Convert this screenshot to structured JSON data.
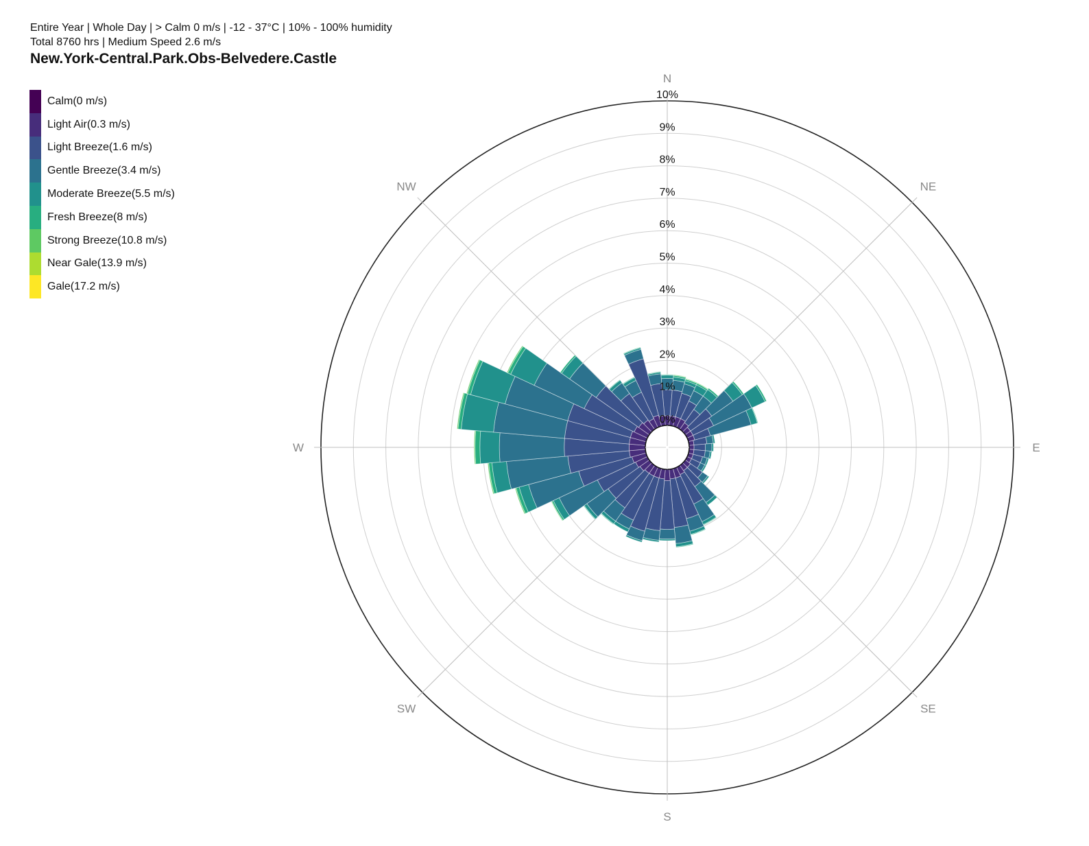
{
  "header": {
    "line1": "Entire Year | Whole Day | > Calm 0 m/s | -12 - 37°C | 10% - 100% humidity",
    "line2": "Total 8760 hrs | Medium Speed 2.6 m/s",
    "title": "New.York-Central.Park.Obs-Belvedere.Castle"
  },
  "legend": [
    {
      "label": "Calm(0 m/s)",
      "color": "#440154"
    },
    {
      "label": "Light Air(0.3 m/s)",
      "color": "#472d7b"
    },
    {
      "label": "Light Breeze(1.6 m/s)",
      "color": "#3b528b"
    },
    {
      "label": "Gentle Breeze(3.4 m/s)",
      "color": "#2c728e"
    },
    {
      "label": "Moderate Breeze(5.5 m/s)",
      "color": "#21918c"
    },
    {
      "label": "Fresh Breeze(8 m/s)",
      "color": "#28ae80"
    },
    {
      "label": "Strong Breeze(10.8 m/s)",
      "color": "#5ec962"
    },
    {
      "label": "Near Gale(13.9 m/s)",
      "color": "#addc30"
    },
    {
      "label": "Gale(17.2 m/s)",
      "color": "#fde725"
    }
  ],
  "chart_data": {
    "type": "wind_rose",
    "radial_unit": "%",
    "rlim": [
      0,
      10
    ],
    "ring_labels": [
      "0%",
      "1%",
      "2%",
      "3%",
      "4%",
      "5%",
      "6%",
      "7%",
      "8%",
      "9%",
      "10%"
    ],
    "directions": [
      "N",
      "NE",
      "E",
      "SE",
      "S",
      "SW",
      "W",
      "NW"
    ],
    "sector_count": 36,
    "sector_width_deg": 10,
    "bins": [
      "Calm",
      "Light Air",
      "Light Breeze",
      "Gentle Breeze",
      "Moderate Breeze",
      "Fresh Breeze",
      "Strong Breeze",
      "Near Gale",
      "Gale"
    ],
    "sectors": [
      {
        "dir_deg": 0,
        "values": [
          0,
          0.3,
          0.8,
          0.35,
          0.1,
          0.02,
          0,
          0,
          0
        ]
      },
      {
        "dir_deg": 10,
        "values": [
          0,
          0.3,
          0.8,
          0.3,
          0.1,
          0.05,
          0.02,
          0,
          0
        ]
      },
      {
        "dir_deg": 20,
        "values": [
          0,
          0.3,
          0.75,
          0.3,
          0.1,
          0.05,
          0.02,
          0,
          0
        ]
      },
      {
        "dir_deg": 30,
        "values": [
          0,
          0.3,
          0.6,
          0.35,
          0.2,
          0.05,
          0.02,
          0,
          0
        ]
      },
      {
        "dir_deg": 40,
        "values": [
          0,
          0.25,
          0.5,
          0.5,
          0.25,
          0.05,
          0,
          0,
          0
        ]
      },
      {
        "dir_deg": 50,
        "values": [
          0,
          0.2,
          0.8,
          0.8,
          0.35,
          0.05,
          0,
          0,
          0
        ]
      },
      {
        "dir_deg": 60,
        "values": [
          0,
          0.2,
          0.7,
          1.3,
          0.45,
          0.05,
          0,
          0,
          0
        ]
      },
      {
        "dir_deg": 70,
        "values": [
          0,
          0.2,
          0.5,
          1.3,
          0.2,
          0.02,
          0,
          0,
          0
        ]
      },
      {
        "dir_deg": 80,
        "values": [
          0,
          0.15,
          0.4,
          0.2,
          0.05,
          0,
          0,
          0,
          0
        ]
      },
      {
        "dir_deg": 90,
        "values": [
          0,
          0.15,
          0.35,
          0.2,
          0.05,
          0,
          0,
          0,
          0
        ]
      },
      {
        "dir_deg": 100,
        "values": [
          0,
          0.15,
          0.35,
          0.15,
          0.05,
          0,
          0,
          0,
          0
        ]
      },
      {
        "dir_deg": 110,
        "values": [
          0,
          0.15,
          0.3,
          0.15,
          0.05,
          0,
          0,
          0,
          0
        ]
      },
      {
        "dir_deg": 120,
        "values": [
          0,
          0.15,
          0.3,
          0.15,
          0.05,
          0,
          0,
          0,
          0
        ]
      },
      {
        "dir_deg": 130,
        "values": [
          0,
          0.2,
          0.45,
          0.2,
          0.05,
          0,
          0,
          0,
          0
        ]
      },
      {
        "dir_deg": 140,
        "values": [
          0,
          0.2,
          0.6,
          0.6,
          0.1,
          0,
          0,
          0,
          0
        ]
      },
      {
        "dir_deg": 150,
        "values": [
          0,
          0.25,
          1.0,
          0.6,
          0.1,
          0.02,
          0,
          0,
          0
        ]
      },
      {
        "dir_deg": 160,
        "values": [
          0,
          0.3,
          1.3,
          0.4,
          0.1,
          0.02,
          0,
          0,
          0
        ]
      },
      {
        "dir_deg": 170,
        "values": [
          0,
          0.3,
          1.5,
          0.5,
          0.1,
          0.02,
          0,
          0,
          0
        ]
      },
      {
        "dir_deg": 180,
        "values": [
          0,
          0.35,
          1.5,
          0.3,
          0.05,
          0,
          0,
          0,
          0
        ]
      },
      {
        "dir_deg": 190,
        "values": [
          0,
          0.3,
          1.6,
          0.3,
          0.05,
          0,
          0,
          0,
          0
        ]
      },
      {
        "dir_deg": 200,
        "values": [
          0,
          0.3,
          1.7,
          0.3,
          0.05,
          0,
          0,
          0,
          0
        ]
      },
      {
        "dir_deg": 210,
        "values": [
          0,
          0.3,
          1.5,
          0.3,
          0.1,
          0,
          0,
          0,
          0
        ]
      },
      {
        "dir_deg": 220,
        "values": [
          0,
          0.3,
          1.3,
          0.5,
          0.1,
          0.02,
          0,
          0,
          0
        ]
      },
      {
        "dir_deg": 230,
        "values": [
          0,
          0.35,
          1.2,
          0.8,
          0.1,
          0.02,
          0,
          0,
          0
        ]
      },
      {
        "dir_deg": 240,
        "values": [
          0,
          0.4,
          1.3,
          1.3,
          0.2,
          0.05,
          0.02,
          0,
          0
        ]
      },
      {
        "dir_deg": 250,
        "values": [
          0,
          0.45,
          1.7,
          1.6,
          0.3,
          0.1,
          0.03,
          0,
          0
        ]
      },
      {
        "dir_deg": 260,
        "values": [
          0,
          0.5,
          1.9,
          1.9,
          0.45,
          0.1,
          0.03,
          0,
          0
        ]
      },
      {
        "dir_deg": 270,
        "values": [
          0,
          0.5,
          2.0,
          2.0,
          0.6,
          0.15,
          0.03,
          0,
          0
        ]
      },
      {
        "dir_deg": 280,
        "values": [
          0,
          0.5,
          2.0,
          2.2,
          1.0,
          0.1,
          0.03,
          0,
          0
        ]
      },
      {
        "dir_deg": 290,
        "values": [
          0,
          0.5,
          2.0,
          2.0,
          1.1,
          0.1,
          0.03,
          0,
          0
        ]
      },
      {
        "dir_deg": 300,
        "values": [
          0,
          0.45,
          1.7,
          1.7,
          0.8,
          0.1,
          0.03,
          0,
          0
        ]
      },
      {
        "dir_deg": 310,
        "values": [
          0,
          0.4,
          1.6,
          1.0,
          0.3,
          0.05,
          0,
          0,
          0
        ]
      },
      {
        "dir_deg": 320,
        "values": [
          0,
          0.35,
          1.0,
          0.4,
          0.1,
          0.02,
          0,
          0,
          0
        ]
      },
      {
        "dir_deg": 330,
        "values": [
          0,
          0.3,
          0.9,
          0.4,
          0.1,
          0.02,
          0,
          0,
          0
        ]
      },
      {
        "dir_deg": 340,
        "values": [
          0,
          0.35,
          1.8,
          0.3,
          0.05,
          0.02,
          0,
          0,
          0
        ]
      },
      {
        "dir_deg": 350,
        "values": [
          0,
          0.3,
          1.0,
          0.3,
          0.05,
          0.02,
          0,
          0,
          0
        ]
      }
    ]
  }
}
